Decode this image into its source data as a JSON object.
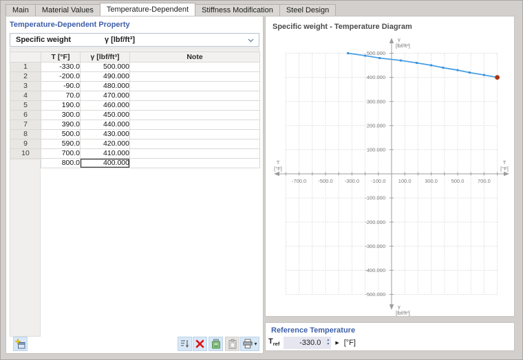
{
  "tabs": [
    {
      "label": "Main",
      "active": false
    },
    {
      "label": "Material Values",
      "active": false
    },
    {
      "label": "Temperature-Dependent",
      "active": true
    },
    {
      "label": "Stiffness Modification",
      "active": false
    },
    {
      "label": "Steel Design",
      "active": false
    }
  ],
  "property_section": {
    "title": "Temperature-Dependent Property",
    "selector": {
      "property": "Specific weight",
      "unit": "γ [lbf/ft³]"
    }
  },
  "table": {
    "columns": {
      "row": "",
      "temperature": "T [°F]",
      "gamma": "γ [lbf/ft³]",
      "note": "Note"
    },
    "rows": [
      {
        "n": "1",
        "t": "-330.0",
        "g": "500.000",
        "note": ""
      },
      {
        "n": "2",
        "t": "-200.0",
        "g": "490.000",
        "note": ""
      },
      {
        "n": "3",
        "t": "-90.0",
        "g": "480.000",
        "note": ""
      },
      {
        "n": "4",
        "t": "70.0",
        "g": "470.000",
        "note": ""
      },
      {
        "n": "5",
        "t": "190.0",
        "g": "460.000",
        "note": ""
      },
      {
        "n": "6",
        "t": "300.0",
        "g": "450.000",
        "note": ""
      },
      {
        "n": "7",
        "t": "390.0",
        "g": "440.000",
        "note": ""
      },
      {
        "n": "8",
        "t": "500.0",
        "g": "430.000",
        "note": ""
      },
      {
        "n": "9",
        "t": "590.0",
        "g": "420.000",
        "note": ""
      },
      {
        "n": "10",
        "t": "700.0",
        "g": "410.000",
        "note": ""
      },
      {
        "n": "11",
        "t": "800.0",
        "g": "400.000",
        "note": ""
      }
    ],
    "focused_row_index": 10
  },
  "table_toolbar": {
    "buttons": [
      "new-row",
      "sort",
      "delete-row",
      "paste-excel",
      "clipboard",
      "print"
    ]
  },
  "diagram": {
    "title": "Specific weight - Temperature Diagram"
  },
  "chart_data": {
    "type": "line",
    "title": "Specific weight - Temperature Diagram",
    "xlabel": "T [°F]",
    "ylabel": "γ [lbf/ft³]",
    "xlabel_lines": [
      "T",
      "[°F]"
    ],
    "ylabel_lines": [
      "γ",
      "[lbf/ft³]"
    ],
    "x": [
      -330,
      -200,
      -90,
      70,
      190,
      300,
      390,
      500,
      590,
      700,
      800
    ],
    "y": [
      500,
      490,
      480,
      470,
      460,
      450,
      440,
      430,
      420,
      410,
      400
    ],
    "xlim": [
      -800,
      800
    ],
    "ylim": [
      -500,
      500
    ],
    "grid": true,
    "grid_step": 100,
    "x_tick_values": [
      -700,
      -500,
      -300,
      -100,
      100,
      300,
      500,
      700
    ],
    "x_tick_labels": [
      "-700.0",
      "-500.0",
      "-300.0",
      "-100.0",
      "100.0",
      "300.0",
      "500.0",
      "700.0"
    ],
    "y_tick_values": [
      500,
      400,
      300,
      200,
      100,
      -100,
      -200,
      -300,
      -400,
      -500
    ],
    "y_tick_labels": [
      "500.000",
      "400.000",
      "300.000",
      "200.000",
      "100.000",
      "-100.000",
      "-200.000",
      "-300.000",
      "-400.000",
      "-500.000"
    ],
    "line_color": "#49a0e6",
    "marker_color": "#3e93da",
    "highlight_point": {
      "x": 800,
      "y": 400,
      "color": "#a93412"
    },
    "legend": "none"
  },
  "reference": {
    "title": "Reference Temperature",
    "label_main": "T",
    "label_sub": "ref",
    "value": "-330.0",
    "unit": "[°F]"
  },
  "icons": {
    "chevron_down": "⌄",
    "spinner_up": "▲",
    "spinner_down": "▼",
    "apply_arrow": "▶",
    "print_caret": "▾"
  },
  "colors": {
    "accent_blue_text": "#3d5ea8",
    "line_blue": "#49a0e6",
    "highlight_red": "#a93412",
    "toolbar_button_bg": "#d8e8f7",
    "dialog_bg": "#d2cfcc"
  }
}
